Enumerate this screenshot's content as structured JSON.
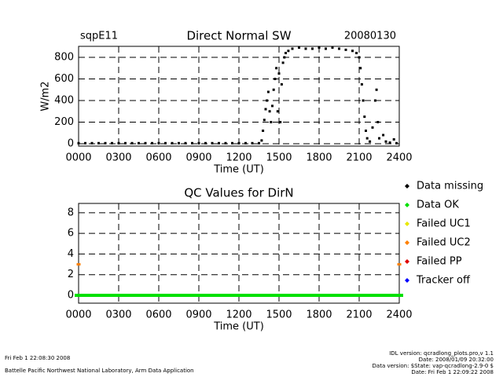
{
  "chart_data": [
    {
      "type": "scatter",
      "title": "Direct Normal SW",
      "site": "sqpE11",
      "date": "20080130",
      "ylabel": "W/m2",
      "xlabel": "Time (UT)",
      "color": "#000000",
      "grid": true,
      "xlim": [
        0,
        24
      ],
      "xticks": [
        {
          "value": 0,
          "label": "0000"
        },
        {
          "value": 3,
          "label": "0300"
        },
        {
          "value": 6,
          "label": "0600"
        },
        {
          "value": 9,
          "label": "0900"
        },
        {
          "value": 12,
          "label": "1200"
        },
        {
          "value": 15,
          "label": "1500"
        },
        {
          "value": 18,
          "label": "1800"
        },
        {
          "value": 21,
          "label": "2100"
        },
        {
          "value": 24,
          "label": "2400"
        }
      ],
      "ylim": [
        -22,
        902
      ],
      "yticks": [
        0,
        200,
        400,
        600,
        800
      ],
      "x": [
        0,
        0.5,
        1,
        1.5,
        2,
        2.5,
        3,
        3.5,
        4,
        4.5,
        5,
        5.5,
        6,
        6.5,
        7,
        7.5,
        8,
        8.5,
        9,
        9.5,
        10,
        10.5,
        11,
        11.5,
        12,
        12.5,
        13,
        13.5,
        13.7,
        13.8,
        13.9,
        14,
        14.1,
        14.2,
        14.3,
        14.4,
        14.5,
        14.6,
        14.7,
        14.8,
        14.9,
        15,
        15.1,
        15.2,
        15.3,
        15.4,
        15.5,
        15.7,
        16,
        16.5,
        17,
        17.5,
        18,
        18.5,
        19,
        19.5,
        20,
        20.5,
        20.8,
        21,
        21.1,
        21.2,
        21.3,
        21.4,
        21.5,
        21.6,
        21.8,
        22,
        22.2,
        22.3,
        22.4,
        22.5,
        22.8,
        23,
        23.3,
        23.6,
        23.8
      ],
      "values": [
        5,
        5,
        5,
        5,
        5,
        5,
        5,
        5,
        5,
        5,
        5,
        5,
        5,
        5,
        5,
        5,
        5,
        5,
        5,
        5,
        5,
        5,
        5,
        5,
        5,
        5,
        5,
        5,
        30,
        120,
        220,
        320,
        400,
        480,
        300,
        200,
        350,
        500,
        600,
        700,
        300,
        650,
        200,
        550,
        750,
        800,
        840,
        860,
        880,
        890,
        880,
        880,
        890,
        880,
        890,
        880,
        870,
        860,
        840,
        800,
        700,
        550,
        400,
        250,
        120,
        50,
        20,
        150,
        400,
        500,
        200,
        50,
        80,
        20,
        10,
        40,
        5
      ]
    },
    {
      "type": "scatter",
      "title": "QC Values for DirN",
      "xlabel": "Time (UT)",
      "grid": true,
      "xlim": [
        0,
        24
      ],
      "xticks": [
        {
          "value": 0,
          "label": "0000"
        },
        {
          "value": 3,
          "label": "0300"
        },
        {
          "value": 6,
          "label": "0600"
        },
        {
          "value": 9,
          "label": "0900"
        },
        {
          "value": 12,
          "label": "1200"
        },
        {
          "value": 15,
          "label": "1500"
        },
        {
          "value": 18,
          "label": "1800"
        },
        {
          "value": 21,
          "label": "2100"
        },
        {
          "value": 24,
          "label": "2400"
        }
      ],
      "ylim": [
        -0.76,
        8.9
      ],
      "yticks": [
        0,
        2,
        4,
        6,
        8
      ],
      "series": [
        {
          "name": "Data missing",
          "color": "#000000",
          "x": [],
          "values": []
        },
        {
          "name": "Data OK",
          "color": "#00e000",
          "x": [
            0,
            0.5,
            1,
            1.5,
            2,
            2.5,
            3,
            3.5,
            4,
            4.5,
            5,
            5.5,
            6,
            6.5,
            7,
            7.5,
            8,
            8.5,
            9,
            9.5,
            10,
            10.5,
            11,
            11.5,
            12,
            12.5,
            13,
            13.5,
            14,
            14.5,
            15,
            15.5,
            16,
            16.5,
            17,
            17.5,
            18,
            18.5,
            19,
            19.5,
            20,
            20.5,
            21,
            21.5,
            22,
            22.5,
            23,
            23.5,
            24
          ],
          "values": [
            0,
            0,
            0,
            0,
            0,
            0,
            0,
            0,
            0,
            0,
            0,
            0,
            0,
            0,
            0,
            0,
            0,
            0,
            0,
            0,
            0,
            0,
            0,
            0,
            0,
            0,
            0,
            0,
            0,
            0,
            0,
            0,
            0,
            0,
            0,
            0,
            0,
            0,
            0,
            0,
            0,
            0,
            0,
            0,
            0,
            0,
            0,
            0,
            0
          ]
        },
        {
          "name": "Failed UC1",
          "color": "#e8e800",
          "x": [],
          "values": []
        },
        {
          "name": "Failed UC2",
          "color": "#ff8000",
          "x": [
            0,
            24
          ],
          "values": [
            3,
            3
          ]
        },
        {
          "name": "Failed PP",
          "color": "#e00000",
          "x": [],
          "values": []
        },
        {
          "name": "Tracker off",
          "color": "#0000ff",
          "x": [],
          "values": []
        }
      ]
    }
  ],
  "footer": {
    "run_time": "Fri Feb  1 22:08:30 2008",
    "lab": "Battelle Pacific Northwest National Laboratory, Arm Data Application",
    "version_lines": [
      "IDL version: qcradlong_plots.pro,v 1.1",
      "Date: 2008/01/09 20:32:00",
      "Data version: $State: vap-qcradlong-2.9-0 $",
      "Date: Fri Feb  1 22:09:22 2008"
    ]
  }
}
